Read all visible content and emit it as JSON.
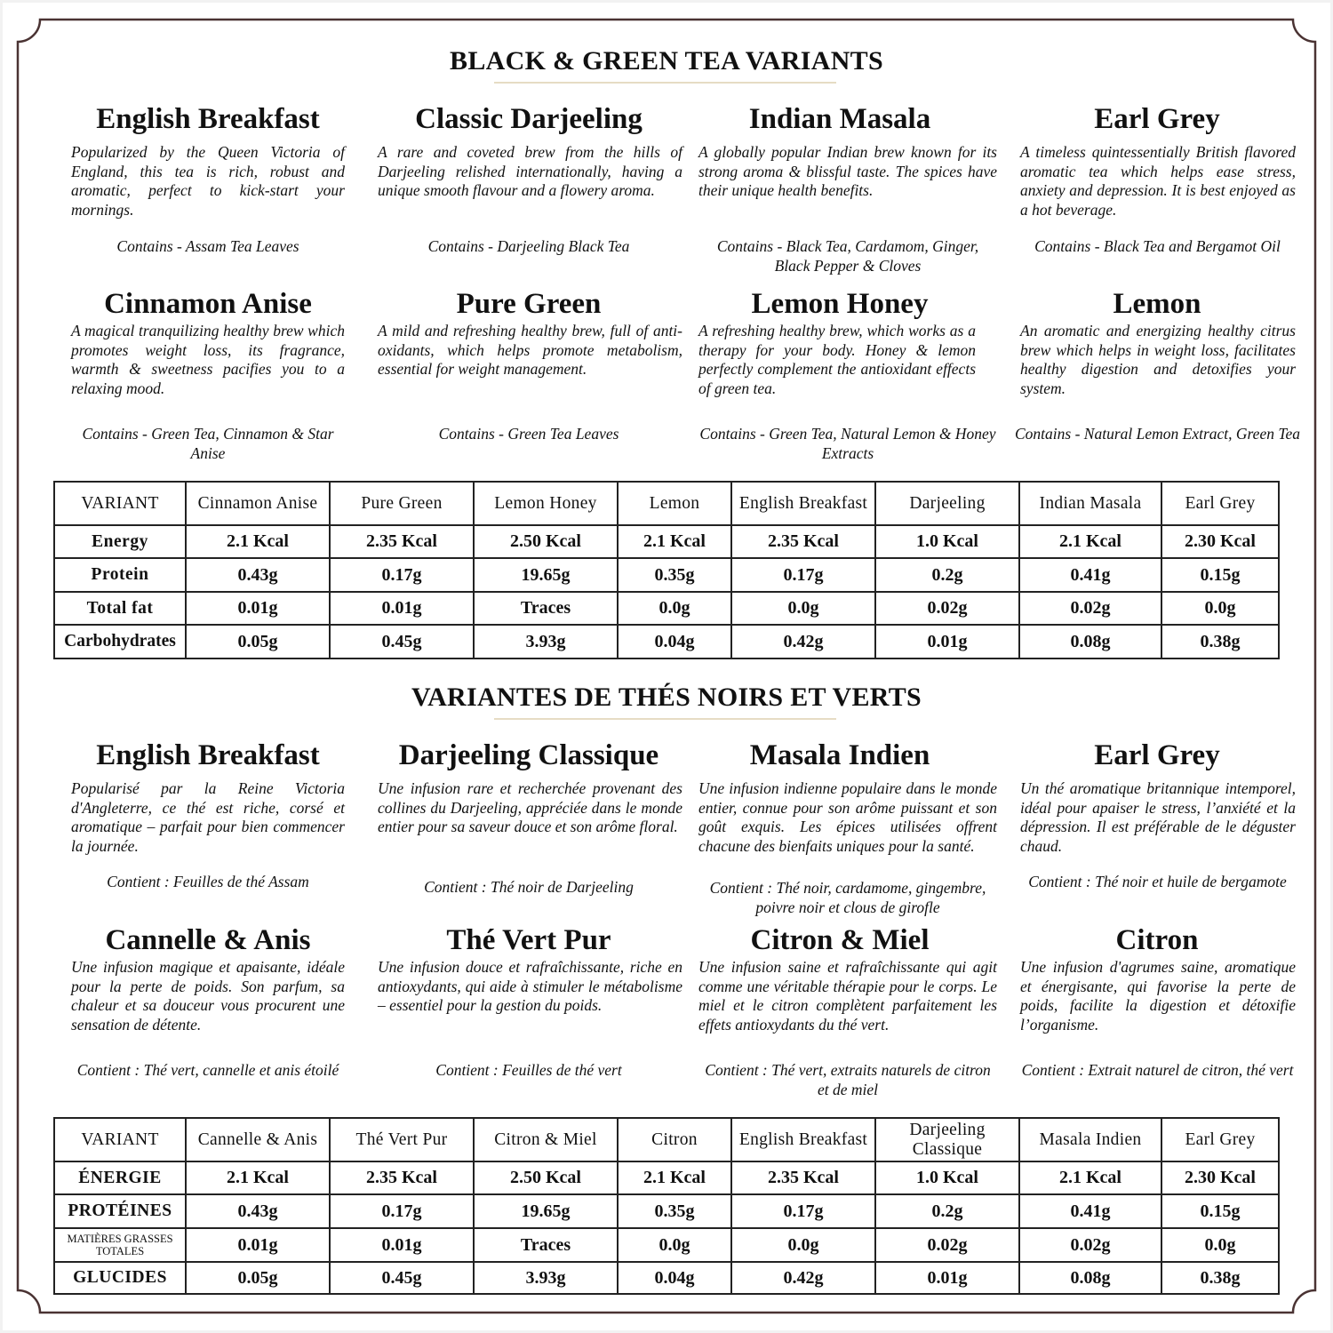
{
  "colors": {
    "frame": "#4a3333",
    "rule": "#e6dcc4",
    "text": "#111111"
  },
  "sections": [
    {
      "heading": "BLACK & GREEN TEA VARIANTS",
      "cards": [
        {
          "title": "English Breakfast",
          "desc": "Popularized by the Queen Victoria of England, this tea is rich, robust and aromatic, perfect to kick-start your mornings.",
          "contains": "Contains - Assam Tea Leaves"
        },
        {
          "title": "Classic Darjeeling",
          "desc": "A rare and coveted brew from the hills of Darjeeling relished internationally, having a unique smooth flavour and a flowery aroma.",
          "contains": "Contains - Darjeeling Black Tea"
        },
        {
          "title": "Indian Masala",
          "desc": "A globally popular Indian brew known for its strong aroma & blissful taste. The spices have their unique health benefits.",
          "contains": "Contains - Black Tea, Cardamom, Ginger, Black Pepper & Cloves"
        },
        {
          "title": "Earl Grey",
          "desc": "A timeless quintessentially British flavored aromatic tea which helps ease stress, anxiety and depression. It is best enjoyed as a hot beverage.",
          "contains": "Contains - Black Tea and Bergamot Oil"
        },
        {
          "title": "Cinnamon Anise",
          "desc": "A magical tranquilizing healthy brew which promotes weight loss, its fragrance, warmth & sweetness pacifies you to a relaxing mood.",
          "contains": "Contains - Green Tea, Cinnamon & Star Anise"
        },
        {
          "title": "Pure Green",
          "desc": "A mild and refreshing healthy brew, full of anti-oxidants, which helps promote metabolism, essential for weight management.",
          "contains": "Contains - Green Tea Leaves"
        },
        {
          "title": "Lemon Honey",
          "desc": "A refreshing healthy brew, which works as a therapy for your body. Honey & lemon perfectly complement the antioxidant effects of green tea.",
          "contains": "Contains - Green Tea, Natural Lemon & Honey Extracts"
        },
        {
          "title": "Lemon",
          "desc": "An aromatic and energizing healthy citrus brew which helps in weight loss, facilitates healthy digestion and detoxifies your system.",
          "contains": "Contains - Natural Lemon Extract, Green Tea"
        }
      ],
      "table": {
        "header": [
          "VARIANT",
          "Cinnamon Anise",
          "Pure Green",
          "Lemon Honey",
          "Lemon",
          "English Breakfast",
          "Darjeeling",
          "Indian Masala",
          "Earl Grey"
        ],
        "rows": [
          [
            "Energy",
            "2.1 Kcal",
            "2.35 Kcal",
            "2.50 Kcal",
            "2.1 Kcal",
            "2.35 Kcal",
            "1.0 Kcal",
            "2.1 Kcal",
            "2.30 Kcal"
          ],
          [
            "Protein",
            "0.43g",
            "0.17g",
            "19.65g",
            "0.35g",
            "0.17g",
            "0.2g",
            "0.41g",
            "0.15g"
          ],
          [
            "Total fat",
            "0.01g",
            "0.01g",
            "Traces",
            "0.0g",
            "0.0g",
            "0.02g",
            "0.02g",
            "0.0g"
          ],
          [
            "Carbohydrates",
            "0.05g",
            "0.45g",
            "3.93g",
            "0.04g",
            "0.42g",
            "0.01g",
            "0.08g",
            "0.38g"
          ]
        ]
      }
    },
    {
      "heading": "VARIANTES DE THÉS NOIRS ET VERTS",
      "cards": [
        {
          "title": "English Breakfast",
          "desc": "Popularisé par la Reine Victoria d'Angleterre, ce thé est riche, corsé et aromatique – parfait pour bien commencer la journée.",
          "contains": "Contient : Feuilles de thé Assam"
        },
        {
          "title": "Darjeeling Classique",
          "desc": "Une infusion rare et recherchée provenant des collines du Darjeeling, appréciée dans le monde entier pour sa saveur douce et son arôme floral.",
          "contains": "Contient : Thé noir de Darjeeling"
        },
        {
          "title": "Masala Indien",
          "desc": "Une infusion indienne populaire dans le monde entier, connue pour son arôme puissant et son goût exquis. Les épices utilisées offrent chacune des bienfaits uniques pour la santé.",
          "contains": "Contient : Thé noir, cardamome, gingembre, poivre noir et clous de girofle"
        },
        {
          "title": "Earl Grey",
          "desc": "Un thé aromatique britannique intemporel, idéal pour apaiser le stress, l’anxiété et la dépression. Il est préférable de le déguster chaud.",
          "contains": "Contient : Thé noir et huile de bergamote"
        },
        {
          "title": "Cannelle & Anis",
          "desc": "Une infusion magique et apaisante, idéale pour la perte de poids. Son parfum, sa chaleur et sa douceur vous procurent une sensation de détente.",
          "contains": "Contient : Thé vert, cannelle et anis étoilé"
        },
        {
          "title": "Thé Vert Pur",
          "desc": "Une infusion douce et rafraîchissante, riche en antioxydants, qui aide à stimuler le métabolisme – essentiel pour la gestion du poids.",
          "contains": "Contient : Feuilles de thé vert"
        },
        {
          "title": "Citron & Miel",
          "desc": "Une infusion saine et rafraîchissante qui agit comme une véritable thérapie pour le corps. Le miel et le citron complètent parfaitement les effets antioxydants du thé vert.",
          "contains": "Contient : Thé vert, extraits naturels de citron et de miel"
        },
        {
          "title": "Citron",
          "desc": "Une infusion d'agrumes saine, aromatique et énergisante, qui favorise la perte de poids, facilite la digestion et détoxifie l’organisme.",
          "contains": "Contient : Extrait naturel de citron, thé vert"
        }
      ],
      "table": {
        "header": [
          "VARIANT",
          "Cannelle & Anis",
          "Thé Vert Pur",
          "Citron & Miel",
          "Citron",
          "English Breakfast",
          "Darjeeling Classique",
          "Masala Indien",
          "Earl Grey"
        ],
        "rows": [
          [
            "ÉNERGIE",
            "2.1 Kcal",
            "2.35 Kcal",
            "2.50 Kcal",
            "2.1 Kcal",
            "2.35 Kcal",
            "1.0 Kcal",
            "2.1 Kcal",
            "2.30 Kcal"
          ],
          [
            "PROTÉINES",
            "0.43g",
            "0.17g",
            "19.65g",
            "0.35g",
            "0.17g",
            "0.2g",
            "0.41g",
            "0.15g"
          ],
          [
            "MATIÈRES GRASSES TOTALES",
            "0.01g",
            "0.01g",
            "Traces",
            "0.0g",
            "0.0g",
            "0.02g",
            "0.02g",
            "0.0g"
          ],
          [
            "GLUCIDES",
            "0.05g",
            "0.45g",
            "3.93g",
            "0.04g",
            "0.42g",
            "0.01g",
            "0.08g",
            "0.38g"
          ]
        ]
      }
    }
  ]
}
